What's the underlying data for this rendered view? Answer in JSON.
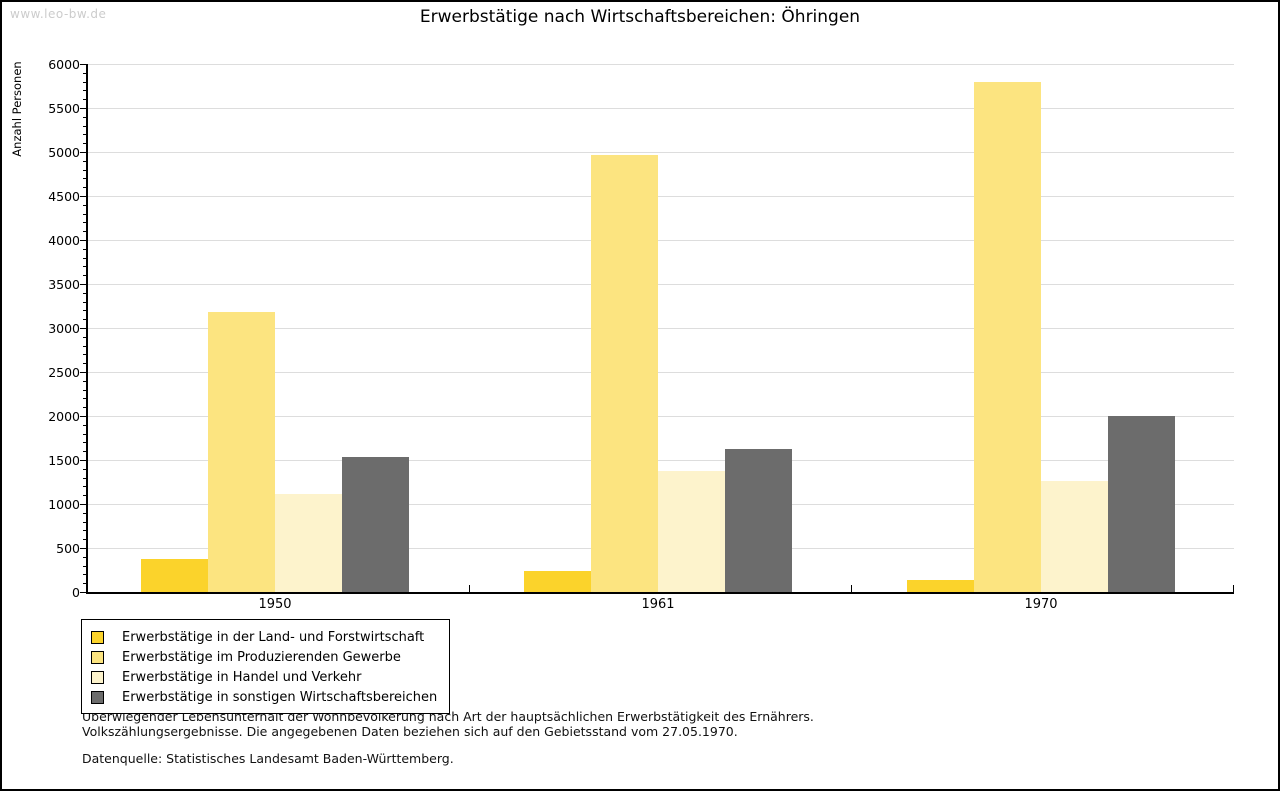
{
  "watermark": "www.leo-bw.de",
  "chart_data": {
    "type": "bar",
    "title": "Erwerbstätige nach Wirtschaftsbereichen: Öhringen",
    "xlabel": "",
    "ylabel": "Anzahl Personen",
    "categories": [
      "1950",
      "1961",
      "1970"
    ],
    "series": [
      {
        "name": "Erwerbstätige in der Land- und Forstwirtschaft",
        "color": "#FBD32B",
        "values": [
          370,
          235,
          140
        ]
      },
      {
        "name": "Erwerbstätige im Produzierenden Gewerbe",
        "color": "#FCE480",
        "values": [
          3180,
          4970,
          5790
        ]
      },
      {
        "name": "Erwerbstätige in Handel und Verkehr",
        "color": "#FDF3CC",
        "values": [
          1110,
          1375,
          1260
        ]
      },
      {
        "name": "Erwerbstätige in sonstigen Wirtschaftsbereichen",
        "color": "#6C6C6C",
        "values": [
          1530,
          1620,
          2005
        ]
      }
    ],
    "ylim": [
      0,
      6000
    ],
    "ytick_step": 500,
    "yminor_step": 100,
    "grid": "horizontal-major",
    "legend_position": "bottom-left",
    "bar_gap_within_group": 0
  },
  "footer": {
    "line1": "Überwiegender Lebensunterhalt der Wohnbevölkerung nach Art der hauptsächlichen Erwerbstätigkeit des Ernährers.",
    "line2": "Volkszählungsergebnisse. Die angegebenen Daten beziehen sich auf den Gebietsstand vom 27.05.1970.",
    "source": "Datenquelle: Statistisches Landesamt Baden-Württemberg."
  }
}
